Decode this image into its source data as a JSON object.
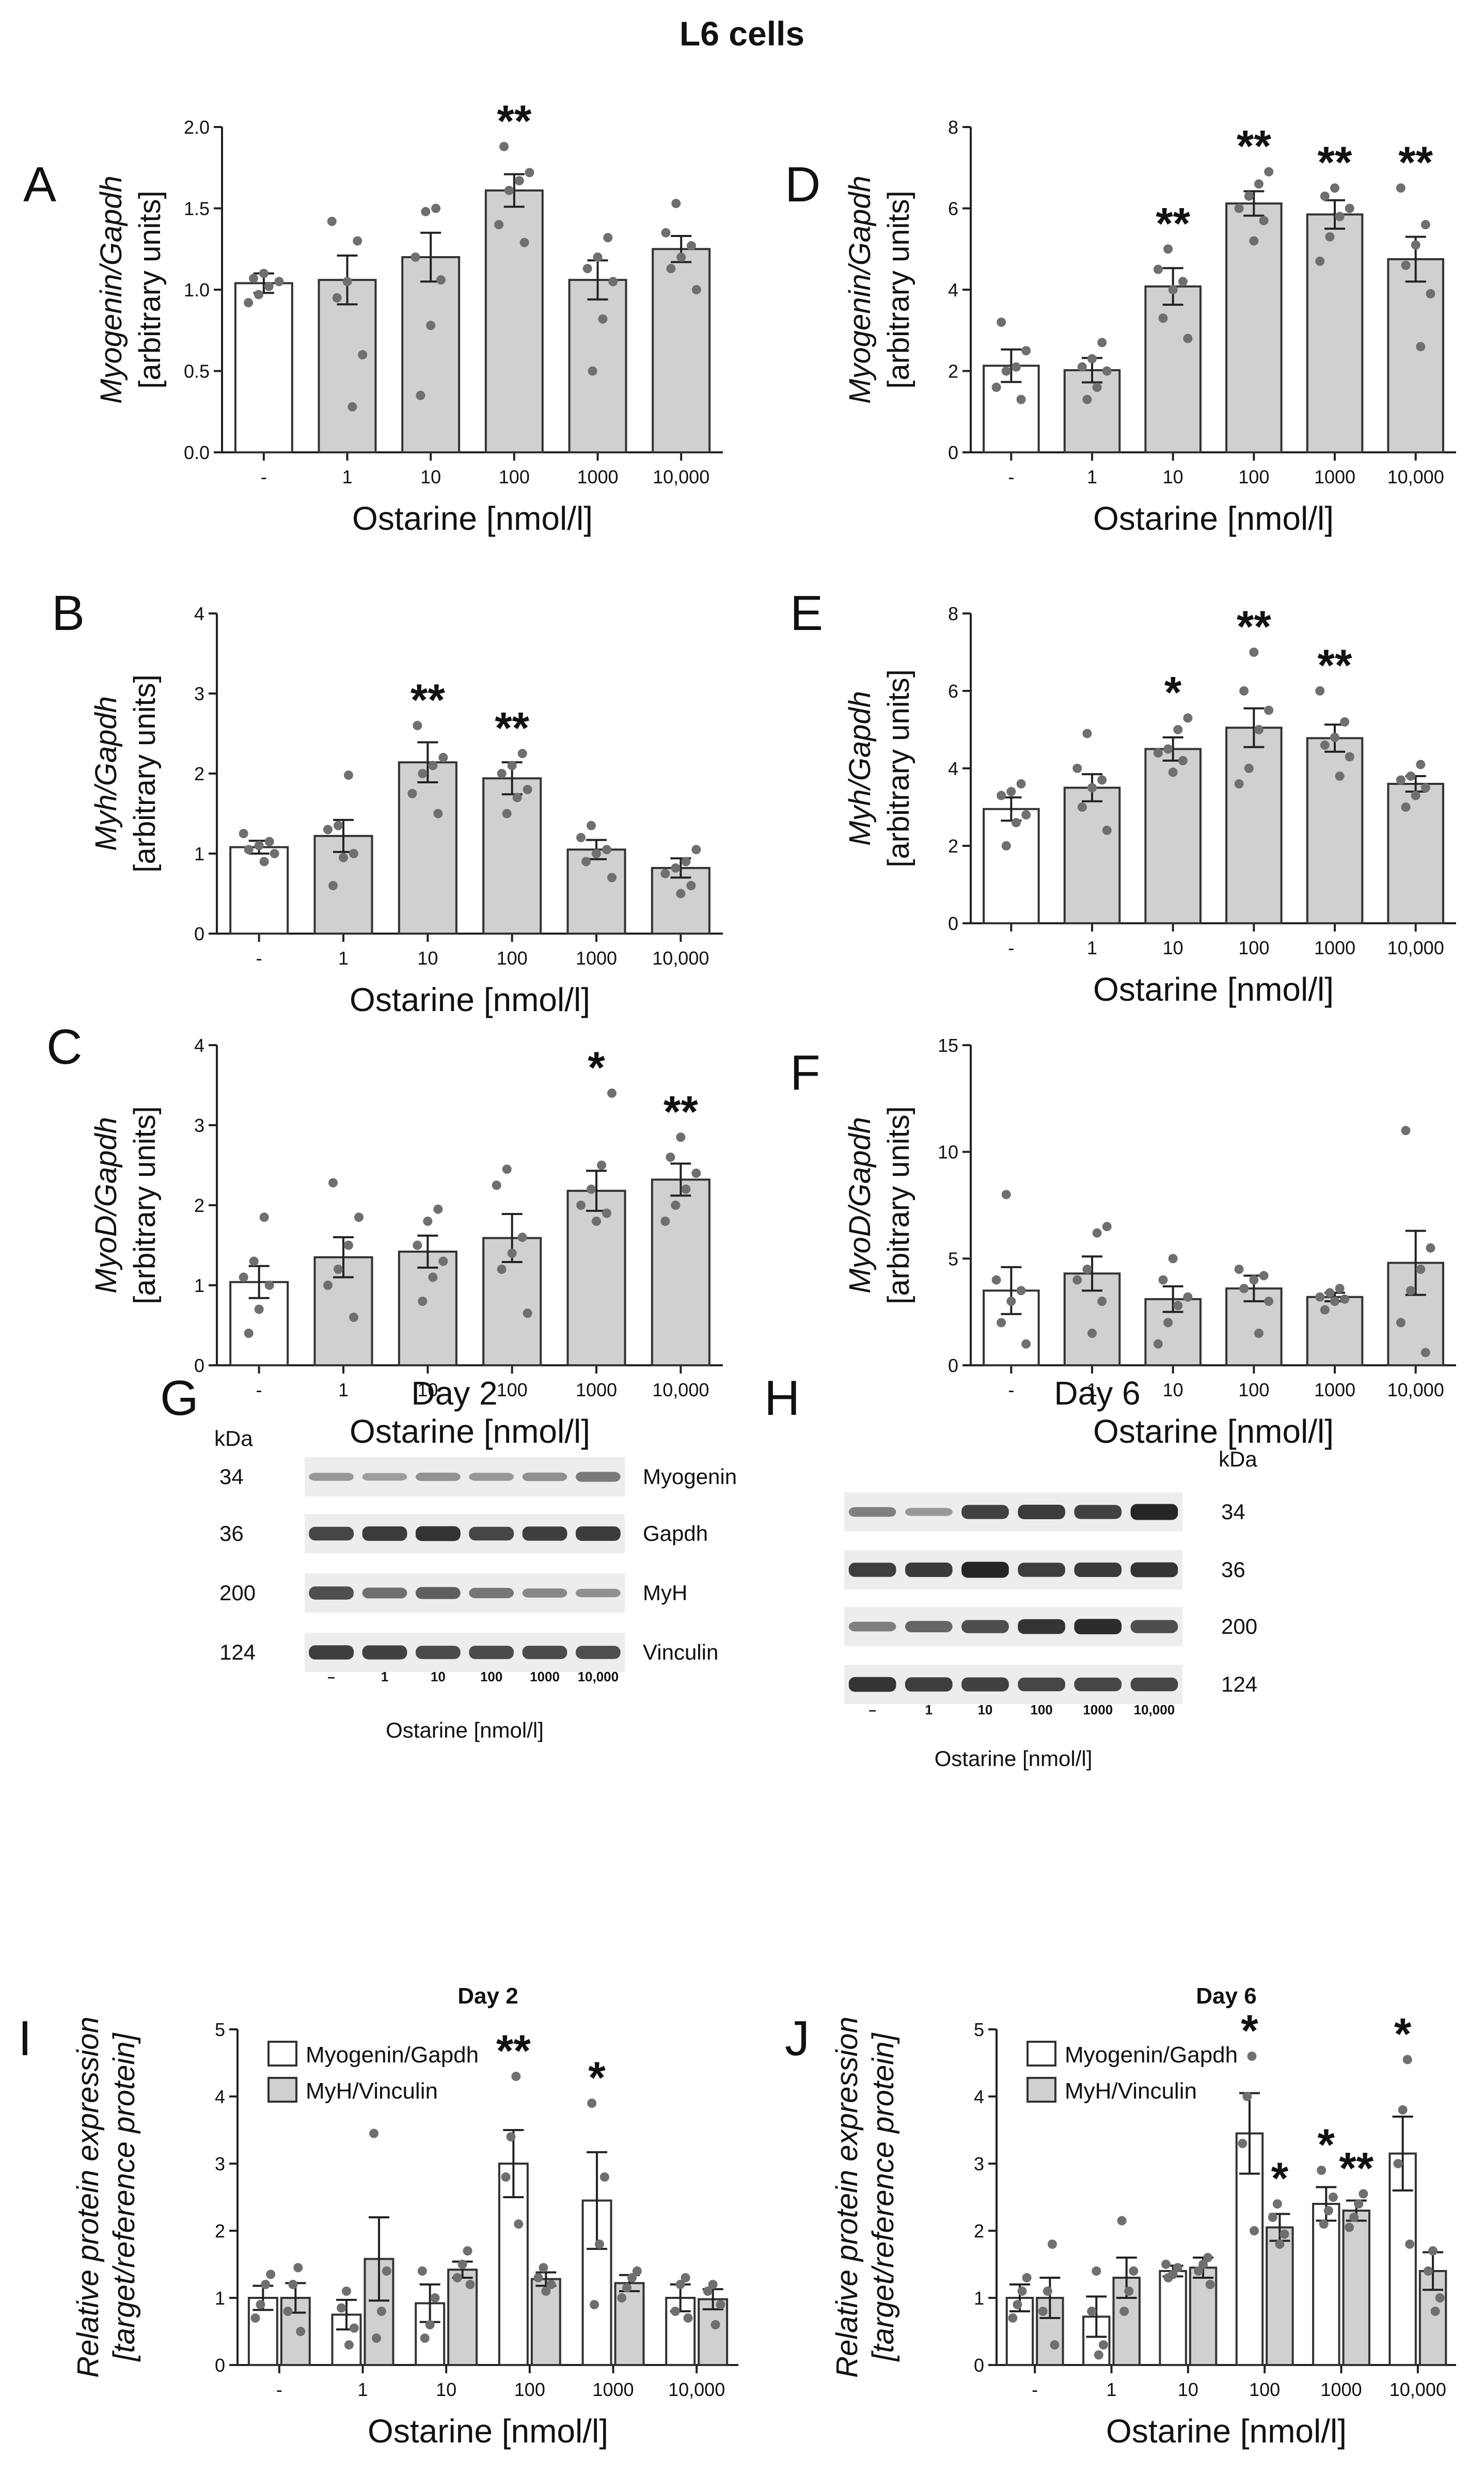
{
  "figure_title": "L6 cells",
  "chart_data": [
    {
      "id": "A",
      "type": "bar",
      "categories": [
        "-",
        "1",
        "10",
        "100",
        "1000",
        "10,000"
      ],
      "values": [
        1.04,
        1.06,
        1.2,
        1.61,
        1.06,
        1.25
      ],
      "errors": [
        0.06,
        0.15,
        0.15,
        0.1,
        0.12,
        0.08
      ],
      "points": [
        [
          0.92,
          0.97,
          1.02,
          1.05,
          1.07,
          1.1
        ],
        [
          0.28,
          0.6,
          0.95,
          1.05,
          1.3,
          1.42
        ],
        [
          0.35,
          0.78,
          1.06,
          1.2,
          1.48,
          1.5
        ],
        [
          1.29,
          1.4,
          1.61,
          1.67,
          1.72,
          1.88
        ],
        [
          0.5,
          0.82,
          1.05,
          1.13,
          1.2,
          1.32
        ],
        [
          1.0,
          1.13,
          1.2,
          1.27,
          1.35,
          1.53
        ]
      ],
      "fills": [
        "#ffffff",
        "#d0d0d0",
        "#d0d0d0",
        "#d0d0d0",
        "#d0d0d0",
        "#d0d0d0"
      ],
      "stars": [
        "",
        "",
        "",
        "**",
        "",
        ""
      ],
      "ylim": [
        0,
        2.0
      ],
      "yticks": [
        "0.0",
        "0.5",
        "1.0",
        "1.5",
        "2.0"
      ],
      "xlabel": "Ostarine [nmol/l]",
      "ylabel_italic": "Myogenin/Gapdh",
      "ylabel_units": "[arbitrary units]"
    },
    {
      "id": "B",
      "type": "bar",
      "categories": [
        "-",
        "1",
        "10",
        "100",
        "1000",
        "10,000"
      ],
      "values": [
        1.08,
        1.22,
        2.14,
        1.94,
        1.05,
        0.82
      ],
      "errors": [
        0.08,
        0.2,
        0.25,
        0.2,
        0.12,
        0.12
      ],
      "points": [
        [
          0.9,
          1.0,
          1.05,
          1.1,
          1.15,
          1.25
        ],
        [
          0.6,
          0.95,
          1.0,
          1.3,
          1.35,
          1.98
        ],
        [
          1.5,
          1.75,
          2.0,
          2.1,
          2.2,
          2.6
        ],
        [
          1.5,
          1.7,
          1.8,
          2.0,
          2.1,
          2.25
        ],
        [
          0.7,
          0.9,
          1.0,
          1.05,
          1.2,
          1.35
        ],
        [
          0.5,
          0.6,
          0.75,
          0.82,
          0.9,
          1.05
        ]
      ],
      "fills": [
        "#ffffff",
        "#d0d0d0",
        "#d0d0d0",
        "#d0d0d0",
        "#d0d0d0",
        "#d0d0d0"
      ],
      "stars": [
        "",
        "",
        "**",
        "**",
        "",
        ""
      ],
      "ylim": [
        0,
        4
      ],
      "yticks": [
        "0",
        "1",
        "2",
        "3",
        "4"
      ],
      "xlabel": "Ostarine [nmol/l]",
      "ylabel_italic": "Myh/Gapdh",
      "ylabel_units": "[arbitrary units]"
    },
    {
      "id": "C",
      "type": "bar",
      "categories": [
        "-",
        "1",
        "10",
        "100",
        "1000",
        "10,000"
      ],
      "values": [
        1.04,
        1.35,
        1.42,
        1.59,
        2.18,
        2.32
      ],
      "errors": [
        0.2,
        0.25,
        0.2,
        0.3,
        0.25,
        0.2
      ],
      "points": [
        [
          0.4,
          0.7,
          1.0,
          1.1,
          1.3,
          1.85
        ],
        [
          0.6,
          1.0,
          1.2,
          1.5,
          1.85,
          2.28
        ],
        [
          0.8,
          1.1,
          1.3,
          1.5,
          1.8,
          1.95
        ],
        [
          0.65,
          1.2,
          1.4,
          1.6,
          2.25,
          2.45
        ],
        [
          1.8,
          1.9,
          2.0,
          2.2,
          2.5,
          3.4
        ],
        [
          1.8,
          2.0,
          2.2,
          2.4,
          2.6,
          2.85
        ]
      ],
      "fills": [
        "#ffffff",
        "#d0d0d0",
        "#d0d0d0",
        "#d0d0d0",
        "#d0d0d0",
        "#d0d0d0"
      ],
      "stars": [
        "",
        "",
        "",
        "",
        "*",
        "**"
      ],
      "ylim": [
        0,
        4
      ],
      "yticks": [
        "0",
        "1",
        "2",
        "3",
        "4"
      ],
      "xlabel": "Ostarine [nmol/l]",
      "ylabel_italic": "MyoD/Gapdh",
      "ylabel_units": "[arbitrary units]"
    },
    {
      "id": "D",
      "type": "bar",
      "categories": [
        "-",
        "1",
        "10",
        "100",
        "1000",
        "10,000"
      ],
      "values": [
        2.13,
        2.02,
        4.08,
        6.12,
        5.85,
        4.75
      ],
      "errors": [
        0.4,
        0.3,
        0.45,
        0.3,
        0.35,
        0.55
      ],
      "points": [
        [
          1.3,
          1.6,
          2.0,
          2.1,
          2.5,
          3.2
        ],
        [
          1.3,
          1.6,
          2.0,
          2.1,
          2.3,
          2.7
        ],
        [
          2.8,
          3.3,
          4.0,
          4.2,
          4.5,
          5.0
        ],
        [
          5.2,
          5.7,
          6.0,
          6.3,
          6.6,
          6.9
        ],
        [
          4.7,
          5.3,
          5.8,
          6.0,
          6.3,
          6.5
        ],
        [
          2.6,
          3.9,
          4.6,
          5.1,
          5.6,
          6.5
        ]
      ],
      "fills": [
        "#ffffff",
        "#d0d0d0",
        "#d0d0d0",
        "#d0d0d0",
        "#d0d0d0",
        "#d0d0d0"
      ],
      "stars": [
        "",
        "",
        "**",
        "**",
        "**",
        "**"
      ],
      "ylim": [
        0,
        8
      ],
      "yticks": [
        "0",
        "2",
        "4",
        "6",
        "8"
      ],
      "xlabel": "Ostarine [nmol/l]",
      "ylabel_italic": "Myogenin/Gapdh",
      "ylabel_units": "[arbitrary units]"
    },
    {
      "id": "E",
      "type": "bar",
      "categories": [
        "-",
        "1",
        "10",
        "100",
        "1000",
        "10,000"
      ],
      "values": [
        2.95,
        3.5,
        4.5,
        5.05,
        4.78,
        3.6
      ],
      "errors": [
        0.3,
        0.35,
        0.3,
        0.5,
        0.35,
        0.2
      ],
      "points": [
        [
          2.0,
          2.6,
          2.8,
          3.3,
          3.4,
          3.6
        ],
        [
          2.4,
          3.0,
          3.5,
          3.7,
          4.0,
          4.9
        ],
        [
          3.9,
          4.2,
          4.4,
          4.5,
          5.0,
          5.3
        ],
        [
          3.6,
          4.0,
          5.0,
          5.5,
          6.0,
          7.0
        ],
        [
          3.8,
          4.3,
          4.6,
          4.8,
          5.2,
          6.0
        ],
        [
          3.0,
          3.3,
          3.5,
          3.7,
          3.8,
          4.1
        ]
      ],
      "fills": [
        "#ffffff",
        "#d0d0d0",
        "#d0d0d0",
        "#d0d0d0",
        "#d0d0d0",
        "#d0d0d0"
      ],
      "stars": [
        "",
        "",
        "*",
        "**",
        "**",
        ""
      ],
      "ylim": [
        0,
        8
      ],
      "yticks": [
        "0",
        "2",
        "4",
        "6",
        "8"
      ],
      "xlabel": "Ostarine [nmol/l]",
      "ylabel_italic": "Myh/Gapdh",
      "ylabel_units": "[arbitrary units]"
    },
    {
      "id": "F",
      "type": "bar",
      "categories": [
        "-",
        "1",
        "10",
        "100",
        "1000",
        "10,000"
      ],
      "values": [
        3.5,
        4.3,
        3.1,
        3.6,
        3.2,
        4.8
      ],
      "errors": [
        1.1,
        0.8,
        0.6,
        0.6,
        0.2,
        1.5
      ],
      "points": [
        [
          1.0,
          2.0,
          3.0,
          3.5,
          4.0,
          8.0
        ],
        [
          1.5,
          3.0,
          4.0,
          4.5,
          6.2,
          6.5
        ],
        [
          1.0,
          2.0,
          2.8,
          3.2,
          4.0,
          5.0
        ],
        [
          1.5,
          3.0,
          3.6,
          4.0,
          4.2,
          4.5
        ],
        [
          2.6,
          3.0,
          3.1,
          3.2,
          3.4,
          3.6
        ],
        [
          0.6,
          2.0,
          3.5,
          4.5,
          5.5,
          11.0
        ]
      ],
      "fills": [
        "#ffffff",
        "#d0d0d0",
        "#d0d0d0",
        "#d0d0d0",
        "#d0d0d0",
        "#d0d0d0"
      ],
      "stars": [
        "",
        "",
        "",
        "",
        "",
        ""
      ],
      "ylim": [
        0,
        15
      ],
      "yticks": [
        "0",
        "5",
        "10",
        "15"
      ],
      "xlabel": "Ostarine [nmol/l]",
      "ylabel_italic": "MyoD/Gapdh",
      "ylabel_units": "[arbitrary units]"
    },
    {
      "id": "I",
      "type": "grouped-bar",
      "title": "Day 2",
      "categories": [
        "-",
        "1",
        "10",
        "100",
        "1000",
        "10,000"
      ],
      "series": [
        {
          "name": "Myogenin/Gapdh",
          "values": [
            1.0,
            0.75,
            0.92,
            3.0,
            2.45,
            1.0
          ],
          "errors": [
            0.18,
            0.22,
            0.28,
            0.5,
            0.72,
            0.2
          ],
          "points": [
            [
              0.7,
              0.9,
              1.2,
              1.35
            ],
            [
              0.3,
              0.55,
              0.85,
              1.1
            ],
            [
              0.4,
              0.6,
              1.0,
              1.4
            ],
            [
              2.1,
              2.8,
              3.4,
              4.3
            ],
            [
              0.9,
              1.8,
              2.8,
              3.9
            ],
            [
              0.7,
              0.8,
              1.2,
              1.3
            ]
          ],
          "fill": "#ffffff",
          "stars": [
            "",
            "",
            "",
            "**",
            "*",
            ""
          ]
        },
        {
          "name": "MyH/Vinculin",
          "values": [
            1.0,
            1.58,
            1.42,
            1.28,
            1.22,
            0.98
          ],
          "errors": [
            0.22,
            0.62,
            0.12,
            0.1,
            0.12,
            0.15
          ],
          "points": [
            [
              0.5,
              0.8,
              1.2,
              1.45
            ],
            [
              0.4,
              0.8,
              1.4,
              3.45
            ],
            [
              1.2,
              1.3,
              1.5,
              1.7
            ],
            [
              1.1,
              1.2,
              1.3,
              1.45
            ],
            [
              1.0,
              1.15,
              1.3,
              1.4
            ],
            [
              0.6,
              0.9,
              1.1,
              1.2
            ]
          ],
          "fill": "#d0d0d0",
          "stars": [
            "",
            "",
            "",
            "",
            "",
            ""
          ]
        }
      ],
      "ylim": [
        0,
        5
      ],
      "yticks": [
        "0",
        "1",
        "2",
        "3",
        "4",
        "5"
      ],
      "xlabel": "Ostarine [nmol/l]",
      "ylabel_line1": "Relative protein expression",
      "ylabel_line2": "[target/reference protein]"
    },
    {
      "id": "J",
      "type": "grouped-bar",
      "title": "Day 6",
      "categories": [
        "-",
        "1",
        "10",
        "100",
        "1000",
        "10,000"
      ],
      "series": [
        {
          "name": "Myogenin/Gapdh",
          "values": [
            1.0,
            0.72,
            1.4,
            3.45,
            2.4,
            3.15
          ],
          "errors": [
            0.2,
            0.3,
            0.08,
            0.6,
            0.25,
            0.55
          ],
          "points": [
            [
              0.7,
              0.9,
              1.1,
              1.3
            ],
            [
              0.15,
              0.3,
              0.8,
              1.4
            ],
            [
              1.3,
              1.35,
              1.45,
              1.5
            ],
            [
              2.0,
              3.3,
              4.0,
              4.6
            ],
            [
              2.1,
              2.3,
              2.5,
              2.9
            ],
            [
              1.8,
              3.0,
              3.8,
              4.55
            ]
          ],
          "fill": "#ffffff",
          "stars": [
            "",
            "",
            "",
            "*",
            "*",
            "*"
          ]
        },
        {
          "name": "MyH/Vinculin",
          "values": [
            1.0,
            1.3,
            1.45,
            2.05,
            2.3,
            1.4
          ],
          "errors": [
            0.3,
            0.3,
            0.15,
            0.2,
            0.15,
            0.28
          ],
          "points": [
            [
              0.3,
              0.8,
              1.1,
              1.8
            ],
            [
              0.8,
              1.1,
              1.4,
              2.15
            ],
            [
              1.2,
              1.4,
              1.5,
              1.6
            ],
            [
              1.8,
              1.95,
              2.2,
              2.4
            ],
            [
              2.05,
              2.2,
              2.4,
              2.55
            ],
            [
              0.8,
              1.0,
              1.4,
              1.7
            ]
          ],
          "fill": "#d0d0d0",
          "stars": [
            "",
            "",
            "",
            "*",
            "**",
            ""
          ]
        }
      ],
      "ylim": [
        0,
        5
      ],
      "yticks": [
        "0",
        "1",
        "2",
        "3",
        "4",
        "5"
      ],
      "xlabel": "Ostarine [nmol/l]",
      "ylabel_line1": "Relative protein expression",
      "ylabel_line2": "[target/reference protein]"
    }
  ],
  "western_blots": [
    {
      "id": "G",
      "title": "Day 2",
      "kda_label": "kDa",
      "kda": [
        "34",
        "36",
        "200",
        "124"
      ],
      "proteins": [
        "Myogenin",
        "Gapdh",
        "MyH",
        "Vinculin"
      ],
      "lanes": [
        "–",
        "1",
        "10",
        "100",
        "1000",
        "10,000"
      ],
      "band_intensity": [
        [
          0.25,
          0.22,
          0.28,
          0.25,
          0.3,
          0.42
        ],
        [
          0.75,
          0.82,
          0.85,
          0.75,
          0.8,
          0.82
        ],
        [
          0.7,
          0.5,
          0.6,
          0.45,
          0.35,
          0.3
        ],
        [
          0.8,
          0.78,
          0.72,
          0.72,
          0.72,
          0.7
        ]
      ],
      "xlabel": "Ostarine [nmol/l]"
    },
    {
      "id": "H",
      "title": "Day 6",
      "kda_label": "kDa",
      "kda": [
        "34",
        "36",
        "200",
        "124"
      ],
      "lanes": [
        "–",
        "1",
        "10",
        "100",
        "1000",
        "10,000"
      ],
      "band_intensity": [
        [
          0.4,
          0.25,
          0.78,
          0.82,
          0.78,
          0.95
        ],
        [
          0.8,
          0.82,
          0.95,
          0.8,
          0.82,
          0.85
        ],
        [
          0.4,
          0.55,
          0.7,
          0.85,
          0.9,
          0.7
        ],
        [
          0.85,
          0.8,
          0.78,
          0.75,
          0.75,
          0.75
        ]
      ],
      "xlabel": "Ostarine [nmol/l]"
    }
  ]
}
